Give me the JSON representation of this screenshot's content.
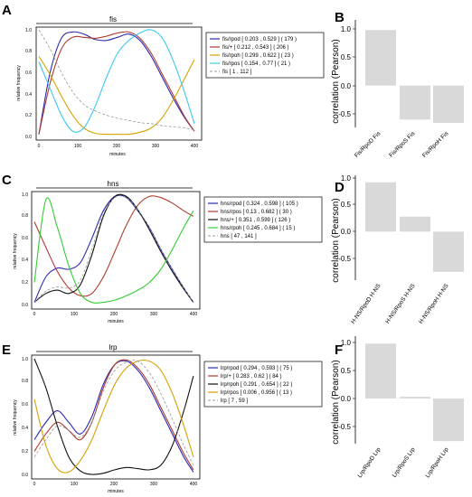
{
  "colors": {
    "blue": "#2a2ab4",
    "red": "#b03a2e",
    "orange": "#d8a000",
    "cyan": "#3cc8f0",
    "black": "#111111",
    "green": "#33cc33",
    "gray": "#999999",
    "bar": "#d9d9d9"
  },
  "panels": [
    {
      "letter": "A",
      "title": "fis",
      "ylabel": "relative frequency",
      "xlabel": "minutes",
      "xticks": [
        "0",
        "100",
        "200",
        "300",
        "400"
      ],
      "yticks": [
        "0.0",
        "0.2",
        "0.4",
        "0.6",
        "0.8",
        "1.0"
      ],
      "legend": [
        {
          "label": "fis/rpod [ 0.203 , 0.529 ] ( 179 )",
          "color": "blue",
          "dashed": false
        },
        {
          "label": "fis/+ [ 0.212 , 0.543 ] ( 206 )",
          "color": "red",
          "dashed": false
        },
        {
          "label": "fis/rpoh [ 0.299 , 0.622 ] ( 23 )",
          "color": "orange",
          "dashed": false
        },
        {
          "label": "fis/rpos [ 0.154 , 0.77 ] ( 21 )",
          "color": "cyan",
          "dashed": false
        },
        {
          "label": "fis [ 1 , 112 ]",
          "color": "gray",
          "dashed": true
        }
      ]
    },
    {
      "letter": "C",
      "title": "hns",
      "ylabel": "relative frequency",
      "xlabel": "minutes",
      "xticks": [
        "0",
        "100",
        "200",
        "300",
        "400"
      ],
      "yticks": [
        "0.0",
        "0.2",
        "0.4",
        "0.6",
        "0.8",
        "1.0"
      ],
      "legend": [
        {
          "label": "hns/rpod [ 0.324 , 0.598 ] ( 105 )",
          "color": "blue",
          "dashed": false
        },
        {
          "label": "hns/rpos [ 0.13 , 0.682 ] ( 30 )",
          "color": "red",
          "dashed": false
        },
        {
          "label": "hns/+ [ 0.351 , 0.599 ] ( 126 )",
          "color": "black",
          "dashed": false
        },
        {
          "label": "hns/rpoh [ 0.245 , 0.684 ] ( 15 )",
          "color": "green",
          "dashed": false
        },
        {
          "label": "hns [ 47 , 141 ]",
          "color": "gray",
          "dashed": true
        }
      ]
    },
    {
      "letter": "E",
      "title": "lrp",
      "ylabel": "relative frequency",
      "xlabel": "minutes",
      "xticks": [
        "0",
        "100",
        "200",
        "300",
        "400"
      ],
      "yticks": [
        "0.0",
        "0.2",
        "0.4",
        "0.6",
        "0.8",
        "1.0"
      ],
      "legend": [
        {
          "label": "lrp/rpod [ 0.294 , 0.593 ] ( 75 )",
          "color": "blue",
          "dashed": false
        },
        {
          "label": "lrp/+ [ 0.283 , 0.62 ] ( 84 )",
          "color": "red",
          "dashed": false
        },
        {
          "label": "lrp/rpoh [ 0.291 , 0.654 ] ( 22 )",
          "color": "black",
          "dashed": false
        },
        {
          "label": "lrp/rpos [ 0.006 , 0.956 ] ( 13 )",
          "color": "orange",
          "dashed": false
        },
        {
          "label": "lrp [ 7 , 59 ]",
          "color": "gray",
          "dashed": true
        }
      ]
    }
  ],
  "bar_panels": [
    {
      "letter": "B",
      "ylabel": "correlation (Pearson)",
      "yticks": [
        "-0.5",
        "0.0",
        "0.5",
        "1.0"
      ]
    },
    {
      "letter": "D",
      "ylabel": "correlation (Pearson)",
      "yticks": [
        "-0.5",
        "0.0",
        "0.5",
        "1.0"
      ]
    },
    {
      "letter": "F",
      "ylabel": "correlation (Pearson)",
      "yticks": [
        "-0.5",
        "0.0",
        "0.5",
        "1.0"
      ]
    }
  ],
  "chart_data": [
    {
      "type": "line",
      "title": "fis",
      "xlabel": "minutes",
      "ylabel": "relative frequency",
      "xlim": [
        0,
        420
      ],
      "ylim": [
        0,
        1
      ],
      "series": [
        {
          "name": "fis/rpod [ 0.203 , 0.529 ] ( 179 )",
          "color": "blue",
          "dashed": false,
          "x": [
            0,
            30,
            60,
            90,
            120,
            150,
            180,
            210,
            240,
            270,
            300,
            330,
            360,
            390,
            415
          ],
          "y": [
            0.02,
            0.6,
            0.92,
            0.98,
            0.96,
            0.91,
            0.9,
            0.93,
            0.96,
            0.9,
            0.75,
            0.55,
            0.35,
            0.17,
            0.05
          ]
        },
        {
          "name": "fis/+ [ 0.212 , 0.543 ] ( 206 )",
          "color": "red",
          "dashed": false,
          "x": [
            0,
            30,
            60,
            90,
            120,
            150,
            180,
            210,
            240,
            270,
            300,
            330,
            360,
            390,
            415
          ],
          "y": [
            0.02,
            0.5,
            0.82,
            0.93,
            0.93,
            0.92,
            0.94,
            0.97,
            0.98,
            0.92,
            0.78,
            0.58,
            0.38,
            0.18,
            0.05
          ]
        },
        {
          "name": "fis/rpoh [ 0.299 , 0.622 ] ( 23 )",
          "color": "orange",
          "dashed": false,
          "x": [
            0,
            30,
            60,
            90,
            120,
            150,
            180,
            210,
            240,
            270,
            300,
            330,
            360,
            390,
            415
          ],
          "y": [
            0.75,
            0.58,
            0.38,
            0.2,
            0.08,
            0.03,
            0.02,
            0.02,
            0.02,
            0.04,
            0.08,
            0.18,
            0.35,
            0.55,
            0.72
          ]
        },
        {
          "name": "fis/rpos [ 0.154 , 0.77 ] ( 21 )",
          "color": "cyan",
          "dashed": false,
          "x": [
            0,
            30,
            60,
            90,
            120,
            150,
            180,
            210,
            240,
            270,
            300,
            330,
            360,
            390,
            415
          ],
          "y": [
            0.7,
            0.45,
            0.2,
            0.05,
            0.08,
            0.28,
            0.55,
            0.78,
            0.9,
            0.97,
            1.0,
            0.92,
            0.7,
            0.4,
            0.12
          ]
        },
        {
          "name": "fis [ 1 , 112 ]",
          "color": "gray",
          "dashed": true,
          "x": [
            0,
            30,
            60,
            90,
            120,
            150,
            180,
            210,
            240,
            270,
            300,
            330,
            360,
            390,
            415
          ],
          "y": [
            1.0,
            0.82,
            0.6,
            0.42,
            0.3,
            0.24,
            0.2,
            0.17,
            0.15,
            0.13,
            0.12,
            0.1,
            0.09,
            0.08,
            0.06
          ]
        }
      ]
    },
    {
      "type": "bar",
      "categories": [
        "Fis/RpoD Fis",
        "Fis/RpoS Fis",
        "Fis/RpoH Fis"
      ],
      "values": [
        0.98,
        -0.6,
        -0.66
      ],
      "ylabel": "correlation (Pearson)",
      "ylim": [
        -0.8,
        1.1
      ]
    },
    {
      "type": "line",
      "title": "hns",
      "xlabel": "minutes",
      "ylabel": "relative frequency",
      "xlim": [
        0,
        420
      ],
      "ylim": [
        0,
        1
      ],
      "series": [
        {
          "name": "hns/rpod [ 0.324 , 0.598 ] ( 105 )",
          "color": "blue",
          "dashed": false,
          "x": [
            0,
            30,
            60,
            90,
            120,
            150,
            180,
            210,
            240,
            270,
            300,
            330,
            360,
            390,
            415
          ],
          "y": [
            0.02,
            0.25,
            0.33,
            0.32,
            0.38,
            0.6,
            0.85,
            0.98,
            0.97,
            0.85,
            0.7,
            0.5,
            0.32,
            0.15,
            0.02
          ]
        },
        {
          "name": "hns/rpos [ 0.13 , 0.682 ] ( 30 )",
          "color": "red",
          "dashed": false,
          "x": [
            0,
            30,
            60,
            90,
            120,
            150,
            180,
            210,
            240,
            270,
            300,
            330,
            360,
            390,
            415
          ],
          "y": [
            0.75,
            0.52,
            0.3,
            0.15,
            0.08,
            0.1,
            0.25,
            0.48,
            0.72,
            0.9,
            0.98,
            0.97,
            0.92,
            0.85,
            0.8
          ]
        },
        {
          "name": "hns/+ [ 0.351 , 0.599 ] ( 126 )",
          "color": "black",
          "dashed": false,
          "x": [
            0,
            30,
            60,
            90,
            120,
            150,
            180,
            210,
            240,
            270,
            300,
            330,
            360,
            390,
            415
          ],
          "y": [
            0.02,
            0.1,
            0.13,
            0.1,
            0.18,
            0.45,
            0.8,
            0.98,
            0.98,
            0.86,
            0.68,
            0.48,
            0.3,
            0.14,
            0.02
          ]
        },
        {
          "name": "hns/rpoh [ 0.245 , 0.684 ] ( 15 )",
          "color": "green",
          "dashed": false,
          "x": [
            0,
            30,
            60,
            90,
            120,
            150,
            180,
            210,
            240,
            270,
            300,
            330,
            360,
            390,
            415
          ],
          "y": [
            0.2,
            0.95,
            0.7,
            0.35,
            0.1,
            0.02,
            0.02,
            0.04,
            0.08,
            0.13,
            0.2,
            0.32,
            0.5,
            0.7,
            0.85
          ]
        },
        {
          "name": "hns [ 47 , 141 ]",
          "color": "gray",
          "dashed": true,
          "x": [
            0,
            30,
            60,
            90,
            120,
            150,
            180,
            210,
            240,
            270,
            300,
            330,
            360,
            390,
            415
          ],
          "y": [
            0.02,
            0.12,
            0.16,
            0.15,
            0.22,
            0.5,
            0.82,
            0.97,
            0.97,
            0.86,
            0.7,
            0.5,
            0.32,
            0.15,
            0.02
          ]
        }
      ]
    },
    {
      "type": "bar",
      "categories": [
        "H-NS/RpoD H-NS",
        "H-NS/RpoS H-NS",
        "H-NS/RpoH H-NS"
      ],
      "values": [
        0.92,
        0.28,
        -0.75
      ],
      "ylabel": "correlation (Pearson)",
      "ylim": [
        -0.8,
        1.1
      ]
    },
    {
      "type": "line",
      "title": "lrp",
      "xlabel": "minutes",
      "ylabel": "relative frequency",
      "xlim": [
        0,
        420
      ],
      "ylim": [
        0,
        1
      ],
      "series": [
        {
          "name": "lrp/rpod [ 0.294 , 0.593 ] ( 75 )",
          "color": "blue",
          "dashed": false,
          "x": [
            0,
            30,
            60,
            90,
            120,
            150,
            180,
            210,
            240,
            270,
            300,
            330,
            360,
            390,
            415
          ],
          "y": [
            0.3,
            0.45,
            0.55,
            0.45,
            0.35,
            0.5,
            0.78,
            0.95,
            0.98,
            0.9,
            0.75,
            0.55,
            0.35,
            0.15,
            0.02
          ]
        },
        {
          "name": "lrp/+ [ 0.283 , 0.62 ] ( 84 )",
          "color": "red",
          "dashed": false,
          "x": [
            0,
            30,
            60,
            90,
            120,
            150,
            180,
            210,
            240,
            270,
            300,
            330,
            360,
            390,
            415
          ],
          "y": [
            0.2,
            0.35,
            0.45,
            0.38,
            0.3,
            0.45,
            0.75,
            0.95,
            0.99,
            0.92,
            0.78,
            0.58,
            0.38,
            0.18,
            0.04
          ]
        },
        {
          "name": "lrp/rpoh [ 0.291 , 0.654 ] ( 22 )",
          "color": "black",
          "dashed": false,
          "x": [
            0,
            30,
            60,
            90,
            120,
            150,
            180,
            210,
            240,
            270,
            300,
            330,
            360,
            390,
            415
          ],
          "y": [
            1.0,
            0.75,
            0.42,
            0.15,
            0.03,
            0.0,
            0.01,
            0.04,
            0.06,
            0.05,
            0.04,
            0.08,
            0.25,
            0.55,
            0.85
          ]
        },
        {
          "name": "lrp/rpos [ 0.006 , 0.956 ] ( 13 )",
          "color": "orange",
          "dashed": false,
          "x": [
            0,
            30,
            60,
            90,
            120,
            150,
            180,
            210,
            240,
            270,
            300,
            330,
            360,
            390,
            415
          ],
          "y": [
            0.65,
            0.25,
            0.05,
            0.02,
            0.12,
            0.3,
            0.55,
            0.78,
            0.92,
            0.98,
            0.98,
            0.9,
            0.7,
            0.42,
            0.15
          ]
        },
        {
          "name": "lrp [ 7 , 59 ]",
          "color": "gray",
          "dashed": true,
          "x": [
            0,
            30,
            60,
            90,
            120,
            150,
            180,
            210,
            240,
            270,
            300,
            330,
            360,
            390,
            415
          ],
          "y": [
            0.15,
            0.3,
            0.42,
            0.38,
            0.32,
            0.45,
            0.72,
            0.9,
            0.97,
            0.98,
            0.88,
            0.7,
            0.48,
            0.25,
            0.08
          ]
        }
      ]
    },
    {
      "type": "bar",
      "categories": [
        "Lrp/RpoD Lrp",
        "Lrp/RpoS Lrp",
        "Lrp/RpoH Lrp"
      ],
      "values": [
        0.98,
        0.03,
        -0.76
      ],
      "ylabel": "correlation (Pearson)",
      "ylim": [
        -0.8,
        1.1
      ]
    }
  ]
}
